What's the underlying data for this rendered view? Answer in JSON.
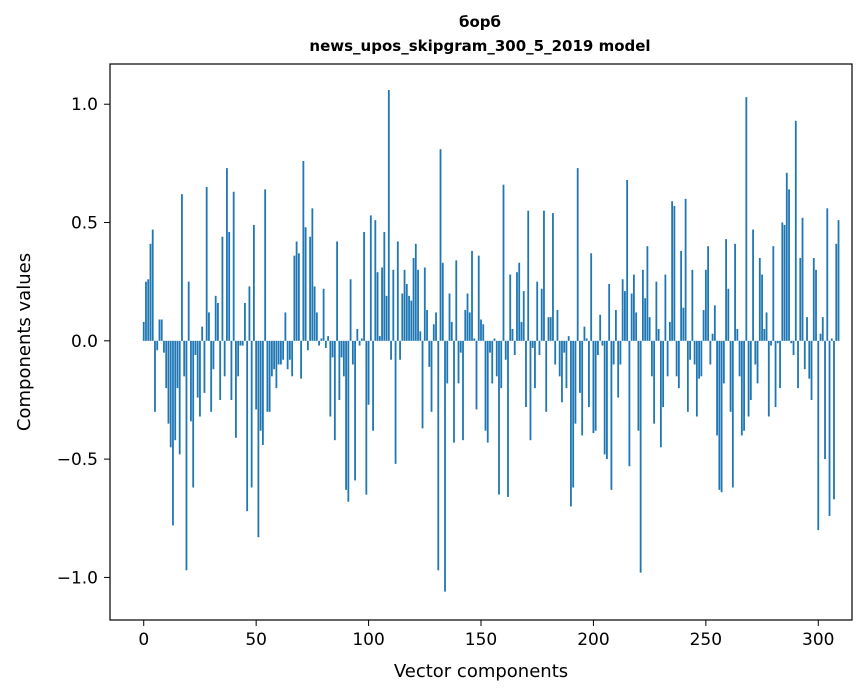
{
  "chart_data": {
    "type": "bar",
    "title": "борб",
    "subtitle": "news_upos_skipgram_300_5_2019 model",
    "xlabel": "Vector components",
    "ylabel": "Components values",
    "xlim": [
      -15,
      315
    ],
    "ylim": [
      -1.18,
      1.17
    ],
    "x_ticks": [
      0,
      50,
      100,
      150,
      200,
      250,
      300
    ],
    "x_tick_labels": [
      "0",
      "50",
      "100",
      "150",
      "200",
      "250",
      "300"
    ],
    "y_ticks": [
      -1.0,
      -0.5,
      0.0,
      0.5,
      1.0
    ],
    "y_tick_labels": [
      "−1.0",
      "−0.5",
      "0.0",
      "0.5",
      "1.0"
    ],
    "bar_color": "#1f77b4",
    "grid": false,
    "legend": "none",
    "values": [
      0.08,
      0.25,
      0.26,
      0.41,
      0.47,
      -0.3,
      -0.04,
      0.09,
      0.09,
      -0.05,
      -0.2,
      -0.35,
      -0.45,
      -0.78,
      -0.42,
      -0.2,
      -0.48,
      0.62,
      -0.15,
      -0.97,
      0.25,
      -0.34,
      -0.62,
      -0.06,
      -0.24,
      -0.32,
      0.06,
      -0.22,
      0.65,
      0.12,
      -0.3,
      -0.12,
      0.19,
      0.16,
      -0.25,
      0.44,
      -0.15,
      0.73,
      0.46,
      -0.25,
      0.63,
      -0.41,
      -0.15,
      -0.02,
      -0.02,
      0.16,
      -0.72,
      0.23,
      -0.62,
      0.49,
      -0.29,
      -0.83,
      -0.38,
      -0.44,
      0.64,
      -0.3,
      -0.3,
      -0.15,
      -0.12,
      -0.2,
      -0.1,
      -0.1,
      -0.08,
      0.12,
      -0.12,
      -0.08,
      -0.15,
      0.36,
      0.42,
      0.37,
      -0.16,
      0.76,
      0.48,
      -0.04,
      0.44,
      0.56,
      0.23,
      0.12,
      -0.02,
      0.01,
      0.22,
      -0.03,
      0.02,
      -0.32,
      -0.07,
      -0.42,
      0.42,
      -0.25,
      -0.07,
      -0.15,
      -0.63,
      -0.68,
      0.26,
      -0.1,
      -0.59,
      0.05,
      -0.02,
      0.01,
      0.46,
      -0.65,
      -0.27,
      0.53,
      -0.38,
      0.51,
      0.29,
      0.02,
      0.31,
      0.46,
      0.19,
      1.06,
      -0.08,
      0.3,
      -0.52,
      0.42,
      -0.08,
      0.2,
      0.3,
      0.24,
      0.19,
      0.17,
      0.35,
      0.41,
      0.3,
      0.04,
      -0.37,
      0.31,
      0.13,
      -0.11,
      -0.3,
      0.07,
      0.12,
      -0.97,
      0.81,
      0.33,
      -1.06,
      -0.18,
      0.2,
      0.08,
      -0.43,
      0.34,
      -0.18,
      -0.05,
      -0.42,
      0.13,
      0.2,
      0.12,
      0.38,
      0.01,
      -0.29,
      0.36,
      0.09,
      0.07,
      -0.38,
      -0.43,
      -0.05,
      -0.18,
      0.01,
      -0.15,
      -0.65,
      -0.2,
      0.66,
      -0.08,
      -0.66,
      0.28,
      0.05,
      -0.06,
      0.29,
      0.33,
      0.08,
      0.21,
      -0.28,
      0.55,
      -0.42,
      -0.03,
      -0.2,
      0.25,
      -0.06,
      0.22,
      0.55,
      -0.3,
      0.1,
      0.1,
      0.54,
      -0.1,
      0.13,
      -0.15,
      -0.26,
      -0.05,
      -0.2,
      0.02,
      -0.7,
      -0.62,
      -0.35,
      0.73,
      -0.22,
      -0.4,
      0.06,
      0.01,
      -0.28,
      0.37,
      -0.39,
      -0.38,
      -0.06,
      0.11,
      -0.02,
      -0.48,
      -0.5,
      0.24,
      -0.63,
      -0.1,
      0.13,
      -0.24,
      -0.1,
      0.26,
      0.21,
      0.68,
      -0.53,
      0.2,
      0.28,
      0.12,
      -0.38,
      -0.98,
      0.3,
      0.18,
      0.4,
      0.1,
      -0.15,
      -0.35,
      0.25,
      0.05,
      -0.45,
      -0.28,
      0.28,
      -0.15,
      0.08,
      0.59,
      0.57,
      -0.15,
      -0.2,
      0.38,
      0.14,
      0.6,
      -0.3,
      -0.08,
      0.3,
      -0.1,
      -0.32,
      -0.16,
      -0.15,
      0.13,
      0.3,
      0.4,
      -0.1,
      0.03,
      0.15,
      -0.4,
      -0.63,
      -0.64,
      -0.18,
      0.43,
      0.22,
      -0.3,
      -0.62,
      0.41,
      0.05,
      -0.15,
      -0.4,
      -0.38,
      1.03,
      -0.32,
      -0.25,
      0.47,
      -0.1,
      -0.18,
      0.35,
      0.28,
      0.05,
      0.12,
      -0.32,
      -0.02,
      0.4,
      -0.28,
      -0.01,
      -0.2,
      0.5,
      0.49,
      0.71,
      0.64,
      -0.01,
      -0.06,
      0.93,
      -0.2,
      0.35,
      0.52,
      -0.12,
      0.1,
      -0.16,
      -0.25,
      0.35,
      0.3,
      -0.8,
      0.03,
      0.1,
      -0.5,
      0.56,
      -0.74,
      0.01,
      -0.67,
      0.41,
      0.51
    ]
  }
}
